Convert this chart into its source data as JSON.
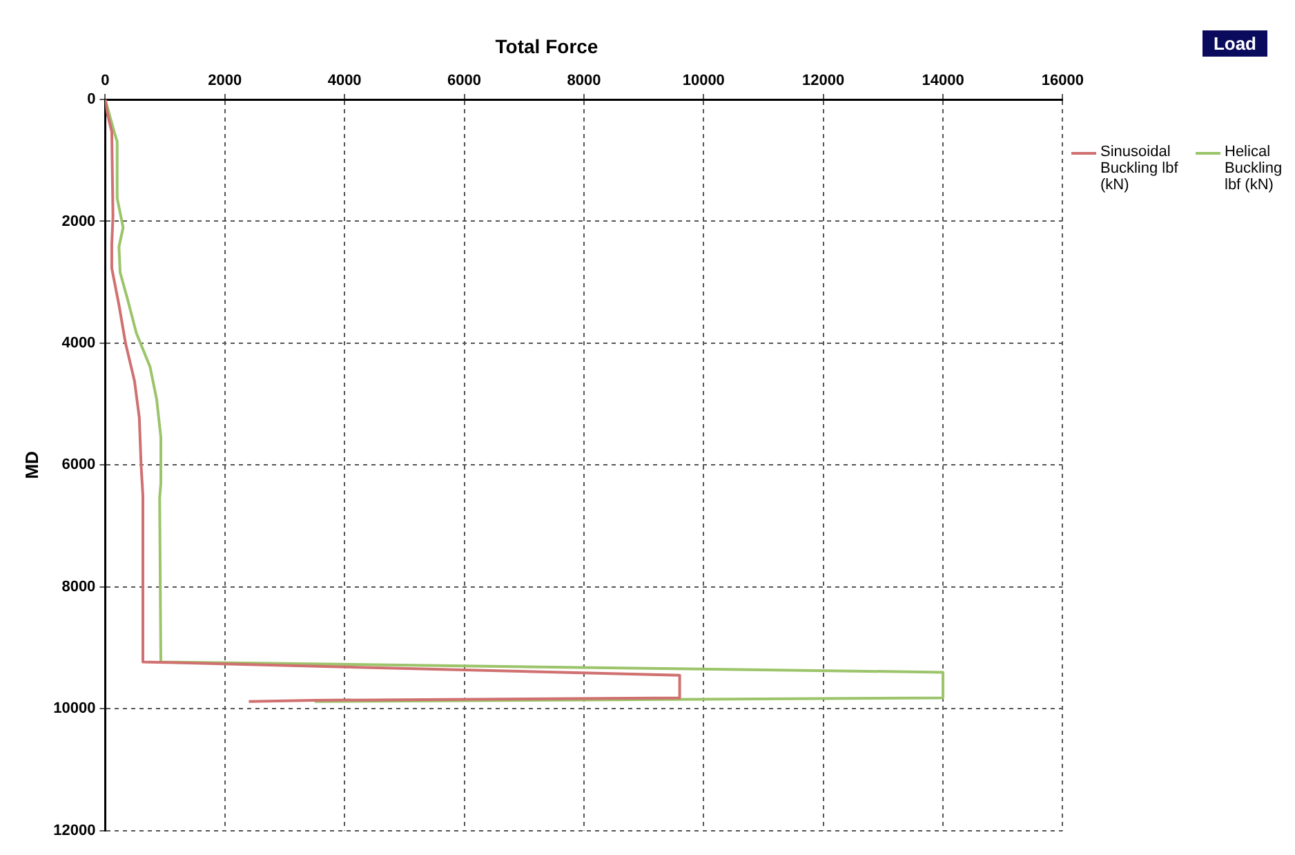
{
  "chart_data": {
    "type": "line",
    "title": "Total Force",
    "ylabel": "MD",
    "xlim": [
      0,
      16000
    ],
    "xticks": [
      0,
      2000,
      4000,
      6000,
      8000,
      10000,
      12000,
      14000,
      16000
    ],
    "ylim": [
      12000,
      0
    ],
    "yticks": [
      0,
      2000,
      4000,
      6000,
      8000,
      10000,
      12000
    ],
    "grid": true,
    "legend": "top right",
    "annotations": [
      "Load"
    ],
    "series": [
      {
        "name": "Sinusoidal Buckling lbf (kN)",
        "color": "#d07070",
        "x": [
          0,
          40,
          110,
          130,
          110,
          110,
          230,
          340,
          490,
          570,
          600,
          630,
          630,
          9600,
          9600,
          3500,
          2400
        ],
        "values": [
          0,
          250,
          530,
          1920,
          2380,
          2770,
          3370,
          4000,
          4620,
          5220,
          6000,
          6500,
          9230,
          9450,
          9820,
          9860,
          9880
        ]
      },
      {
        "name": "Helical Buckling lbf (kN)",
        "color": "#9cc46a",
        "x": [
          0,
          150,
          200,
          200,
          300,
          230,
          250,
          380,
          520,
          750,
          860,
          930,
          930,
          910,
          930,
          14000,
          14000,
          3500
        ],
        "values": [
          0,
          530,
          690,
          1620,
          2100,
          2420,
          2840,
          3300,
          3830,
          4390,
          4920,
          5540,
          6300,
          6540,
          9230,
          9400,
          9820,
          9880
        ]
      }
    ]
  }
}
